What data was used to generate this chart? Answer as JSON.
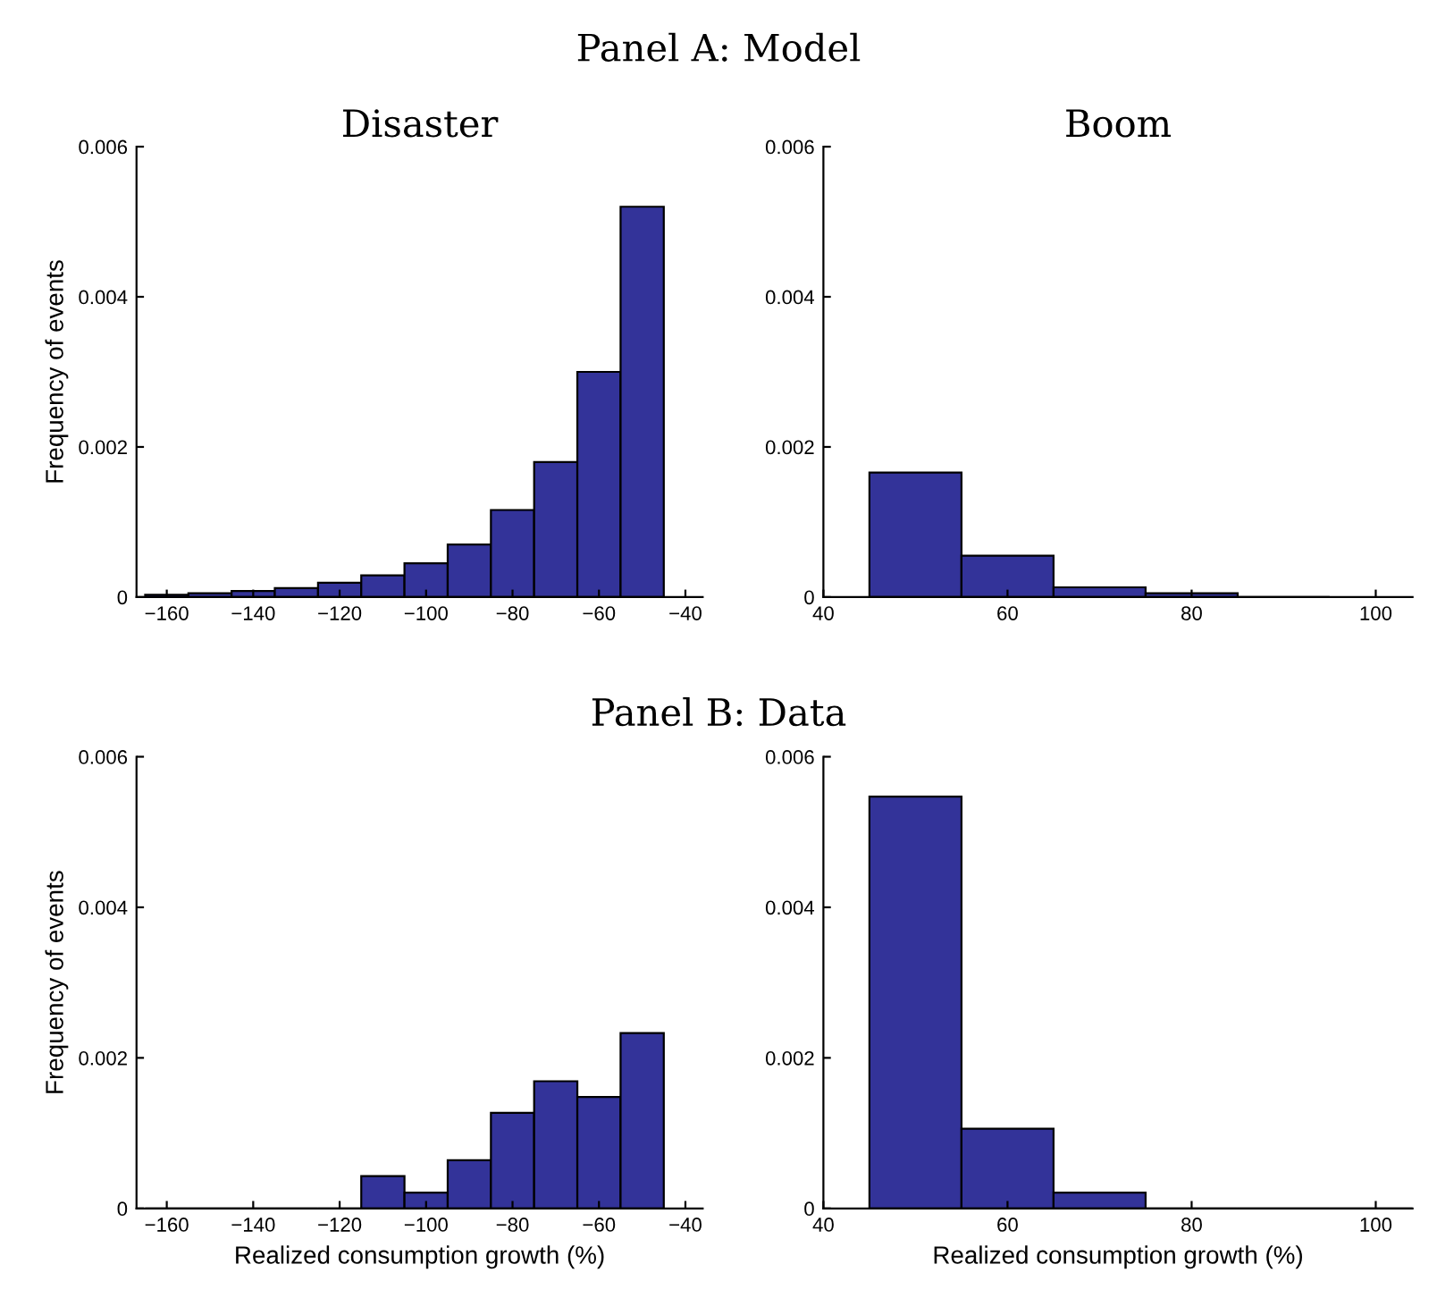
{
  "chart_data": [
    {
      "type": "histogram",
      "title": "Disaster",
      "annotations": [
        "Panel A: Model"
      ],
      "ylabel": "Frequency of events",
      "bins": [
        -165,
        -155,
        -145,
        -135,
        -125,
        -115,
        -105,
        -95,
        -85,
        -75,
        -65,
        -55,
        -45
      ],
      "values": [
        3e-05,
        5e-05,
        8e-05,
        0.00012,
        0.00019,
        0.00029,
        0.00045,
        0.0007,
        0.00116,
        0.0018,
        0.003,
        0.0052
      ],
      "color": "#333399",
      "xlim": [
        -167,
        -36
      ],
      "ylim": [
        0,
        0.006
      ],
      "xticks": [
        {
          "value": -160,
          "label": "−160"
        },
        {
          "value": -140,
          "label": "−140"
        },
        {
          "value": -120,
          "label": "−120"
        },
        {
          "value": -100,
          "label": "−100"
        },
        {
          "value": -80,
          "label": "−80"
        },
        {
          "value": -60,
          "label": "−60"
        },
        {
          "value": -40,
          "label": "−40"
        }
      ],
      "yticks": [
        0,
        0.002,
        0.004,
        0.006
      ],
      "grid": false
    },
    {
      "type": "histogram",
      "title": "Boom",
      "bins": [
        45,
        55,
        65,
        75,
        85,
        95,
        105
      ],
      "values": [
        0.00166,
        0.00055,
        0.00013,
        5e-05,
        0,
        null
      ],
      "color": "#333399",
      "xlim": [
        40,
        104
      ],
      "ylim": [
        0,
        0.006
      ],
      "xticks": [
        40,
        60,
        80,
        100
      ],
      "yticks": [
        0,
        0.002,
        0.004,
        0.006
      ],
      "grid": false
    },
    {
      "type": "histogram",
      "annotations": [
        "Panel B: Data"
      ],
      "ylabel": "Frequency of events",
      "xlabel": "Realized consumption growth (%)",
      "bins": [
        -165,
        -155,
        -145,
        -135,
        -125,
        -115,
        -105,
        -95,
        -85,
        -75,
        -65,
        -55,
        -45
      ],
      "values": [
        0,
        0,
        0,
        0,
        0,
        0.00043,
        0.00021,
        0.00064,
        0.00127,
        0.00169,
        0.00148,
        0.00233
      ],
      "color": "#333399",
      "xlim": [
        -167,
        -36
      ],
      "ylim": [
        0,
        0.006
      ],
      "xticks": [
        {
          "value": -160,
          "label": "−160"
        },
        {
          "value": -140,
          "label": "−140"
        },
        {
          "value": -120,
          "label": "−120"
        },
        {
          "value": -100,
          "label": "−100"
        },
        {
          "value": -80,
          "label": "−80"
        },
        {
          "value": -60,
          "label": "−60"
        },
        {
          "value": -40,
          "label": "−40"
        }
      ],
      "yticks": [
        0,
        0.002,
        0.004,
        0.006
      ],
      "grid": false
    },
    {
      "type": "histogram",
      "xlabel": "Realized consumption growth (%)",
      "bins": [
        45,
        55,
        65,
        75,
        85,
        95,
        105
      ],
      "values": [
        0.00547,
        0.00106,
        0.00021,
        0,
        0,
        0
      ],
      "color": "#333399",
      "xlim": [
        40,
        104
      ],
      "ylim": [
        0,
        0.006
      ],
      "xticks": [
        40,
        60,
        80,
        100
      ],
      "yticks": [
        0,
        0.002,
        0.004,
        0.006
      ],
      "grid": false
    }
  ]
}
